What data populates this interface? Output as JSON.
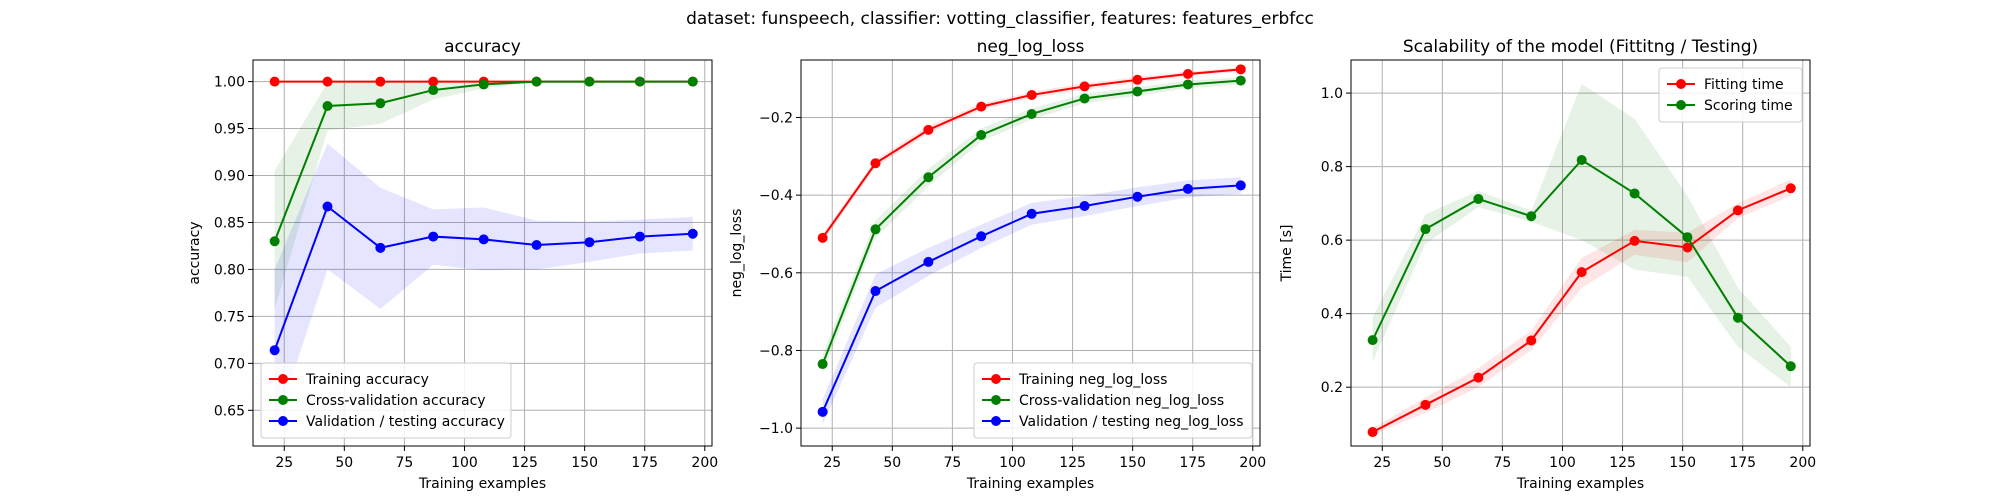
{
  "suptitle": "dataset: funspeech, classifier: votting_classifier, features: features_erbfcc",
  "chart_data": [
    {
      "type": "line",
      "title": "accuracy",
      "xlabel": "Training examples",
      "ylabel": "accuracy",
      "xlim": [
        12,
        203
      ],
      "ylim": [
        0.612,
        1.023
      ],
      "xticks": [
        25,
        50,
        75,
        100,
        125,
        150,
        175,
        200
      ],
      "yticks": [
        0.65,
        0.7,
        0.75,
        0.8,
        0.85,
        0.9,
        0.95,
        1.0
      ],
      "ytick_decimals": 2,
      "grid": true,
      "legend_placement": "lower-left",
      "x": [
        21,
        43,
        65,
        87,
        108,
        130,
        152,
        173,
        195
      ],
      "series": [
        {
          "name": "Training accuracy",
          "color": "#ff0000",
          "values": [
            1.0,
            1.0,
            1.0,
            1.0,
            1.0,
            1.0,
            1.0,
            1.0,
            1.0
          ],
          "band": [
            [
              1.0,
              1.0
            ],
            [
              1.0,
              1.0
            ],
            [
              1.0,
              1.0
            ],
            [
              1.0,
              1.0
            ],
            [
              1.0,
              1.0
            ],
            [
              1.0,
              1.0
            ],
            [
              1.0,
              1.0
            ],
            [
              1.0,
              1.0
            ],
            [
              1.0,
              1.0
            ]
          ]
        },
        {
          "name": "Cross-validation accuracy",
          "color": "#008000",
          "values": [
            0.83,
            0.974,
            0.977,
            0.991,
            0.997,
            1.0,
            1.0,
            1.0,
            1.0
          ],
          "band": [
            [
              0.758,
              0.905
            ],
            [
              0.948,
              0.999
            ],
            [
              0.955,
              0.999
            ],
            [
              0.981,
              1.0
            ],
            [
              0.993,
              1.0
            ],
            [
              1.0,
              1.0
            ],
            [
              1.0,
              1.0
            ],
            [
              1.0,
              1.0
            ],
            [
              1.0,
              1.0
            ]
          ]
        },
        {
          "name": "Validation / testing accuracy",
          "color": "#0000ff",
          "values": [
            0.714,
            0.867,
            0.823,
            0.835,
            0.832,
            0.826,
            0.829,
            0.835,
            0.838
          ],
          "band": [
            [
              0.63,
              0.8
            ],
            [
              0.8,
              0.934
            ],
            [
              0.758,
              0.887
            ],
            [
              0.805,
              0.864
            ],
            [
              0.799,
              0.866
            ],
            [
              0.8,
              0.852
            ],
            [
              0.808,
              0.851
            ],
            [
              0.817,
              0.853
            ],
            [
              0.82,
              0.856
            ]
          ]
        }
      ]
    },
    {
      "type": "line",
      "title": "neg_log_loss",
      "xlabel": "Training examples",
      "ylabel": "neg_log_loss",
      "xlim": [
        12,
        203
      ],
      "ylim": [
        -1.046,
        -0.052
      ],
      "xticks": [
        25,
        50,
        75,
        100,
        125,
        150,
        175,
        200
      ],
      "yticks": [
        -1.0,
        -0.8,
        -0.6,
        -0.4,
        -0.2
      ],
      "ytick_decimals": 1,
      "grid": true,
      "legend_placement": "lower-right",
      "x": [
        21,
        43,
        65,
        87,
        108,
        130,
        152,
        173,
        195
      ],
      "series": [
        {
          "name": "Training neg_log_loss",
          "color": "#ff0000",
          "values": [
            -0.51,
            -0.318,
            -0.232,
            -0.172,
            -0.142,
            -0.12,
            -0.103,
            -0.088,
            -0.076
          ],
          "band": [
            [
              -0.52,
              -0.5
            ],
            [
              -0.328,
              -0.308
            ],
            [
              -0.242,
              -0.222
            ],
            [
              -0.18,
              -0.164
            ],
            [
              -0.15,
              -0.134
            ],
            [
              -0.128,
              -0.112
            ],
            [
              -0.11,
              -0.096
            ],
            [
              -0.094,
              -0.082
            ],
            [
              -0.082,
              -0.07
            ]
          ]
        },
        {
          "name": "Cross-validation neg_log_loss",
          "color": "#008000",
          "values": [
            -0.835,
            -0.488,
            -0.354,
            -0.245,
            -0.191,
            -0.151,
            -0.133,
            -0.115,
            -0.105
          ],
          "band": [
            [
              -0.86,
              -0.81
            ],
            [
              -0.51,
              -0.466
            ],
            [
              -0.376,
              -0.332
            ],
            [
              -0.262,
              -0.228
            ],
            [
              -0.205,
              -0.177
            ],
            [
              -0.163,
              -0.139
            ],
            [
              -0.144,
              -0.122
            ],
            [
              -0.125,
              -0.105
            ],
            [
              -0.114,
              -0.096
            ]
          ]
        },
        {
          "name": "Validation / testing neg_log_loss",
          "color": "#0000ff",
          "values": [
            -0.958,
            -0.647,
            -0.572,
            -0.506,
            -0.448,
            -0.428,
            -0.404,
            -0.384,
            -0.375
          ],
          "band": [
            [
              -0.99,
              -0.926
            ],
            [
              -0.69,
              -0.604
            ],
            [
              -0.608,
              -0.536
            ],
            [
              -0.536,
              -0.476
            ],
            [
              -0.476,
              -0.42
            ],
            [
              -0.454,
              -0.402
            ],
            [
              -0.428,
              -0.38
            ],
            [
              -0.406,
              -0.362
            ],
            [
              -0.396,
              -0.354
            ]
          ]
        }
      ]
    },
    {
      "type": "line",
      "title": "Scalability of the model (Fittitng / Testing)",
      "xlabel": "Training examples",
      "ylabel": "Time [s]",
      "xlim": [
        12,
        203
      ],
      "ylim": [
        0.04,
        1.09
      ],
      "xticks": [
        25,
        50,
        75,
        100,
        125,
        150,
        175,
        200
      ],
      "yticks": [
        0.2,
        0.4,
        0.6,
        0.8,
        1.0
      ],
      "ytick_decimals": 1,
      "grid": true,
      "legend_placement": "top-right",
      "x": [
        21,
        43,
        65,
        87,
        108,
        130,
        152,
        173,
        195
      ],
      "series": [
        {
          "name": "Fitting time",
          "color": "#ff0000",
          "values": [
            0.078,
            0.152,
            0.226,
            0.327,
            0.513,
            0.598,
            0.58,
            0.681,
            0.741
          ],
          "band": [
            [
              0.07,
              0.088
            ],
            [
              0.13,
              0.172
            ],
            [
              0.2,
              0.252
            ],
            [
              0.3,
              0.354
            ],
            [
              0.47,
              0.552
            ],
            [
              0.56,
              0.628
            ],
            [
              0.54,
              0.62
            ],
            [
              0.66,
              0.7
            ],
            [
              0.72,
              0.765
            ]
          ]
        },
        {
          "name": "Scoring time",
          "color": "#008000",
          "values": [
            0.328,
            0.63,
            0.712,
            0.665,
            0.818,
            0.727,
            0.608,
            0.389,
            0.257
          ],
          "band": [
            [
              0.27,
              0.39
            ],
            [
              0.59,
              0.67
            ],
            [
              0.69,
              0.734
            ],
            [
              0.65,
              0.68
            ],
            [
              0.6,
              1.025
            ],
            [
              0.52,
              0.93
            ],
            [
              0.5,
              0.72
            ],
            [
              0.31,
              0.47
            ],
            [
              0.2,
              0.31
            ]
          ]
        }
      ]
    }
  ]
}
